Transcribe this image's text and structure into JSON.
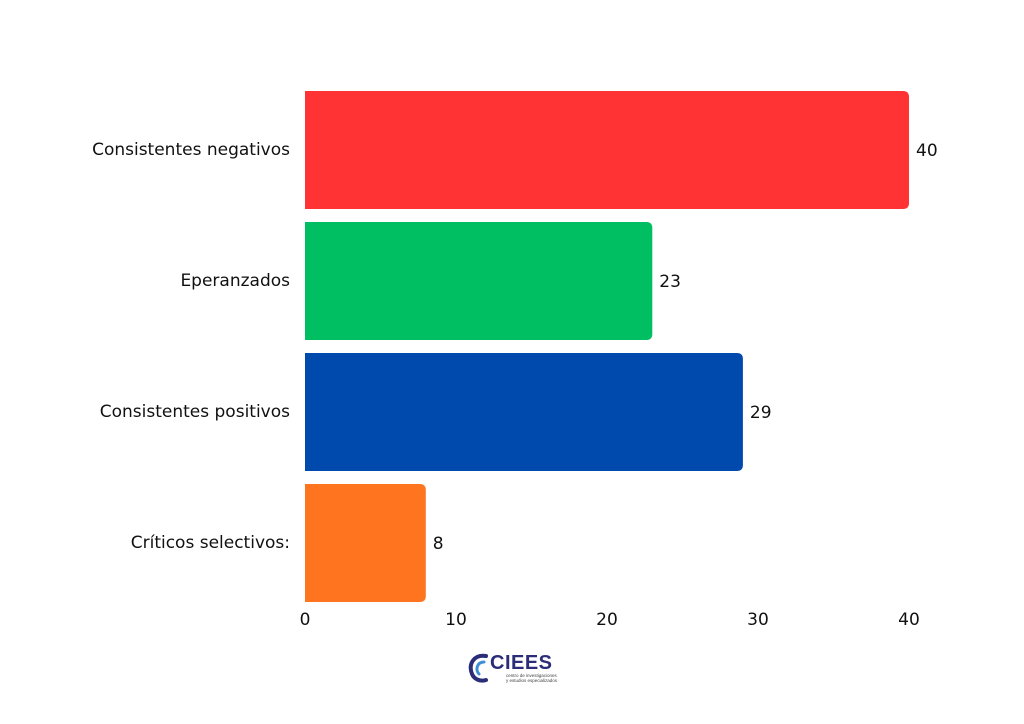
{
  "chart_data": {
    "type": "bar",
    "orientation": "horizontal",
    "categories": [
      "Consistentes negativos",
      "Eperanzados",
      "Consistentes positivos",
      "Críticos selectivos:"
    ],
    "values": [
      40,
      23,
      29,
      8
    ],
    "colors": [
      "#ff3333",
      "#00bf63",
      "#004aad",
      "#ff751f"
    ],
    "xlim": [
      0,
      40
    ],
    "xticks": [
      0,
      10,
      20,
      30,
      40
    ],
    "grid": false,
    "legend": "none",
    "title": "",
    "xlabel": "",
    "ylabel": ""
  },
  "logo": {
    "name": "CIEES",
    "subtitle_line1": "centro de investigaciones",
    "subtitle_line2": "y estudios especializados"
  }
}
